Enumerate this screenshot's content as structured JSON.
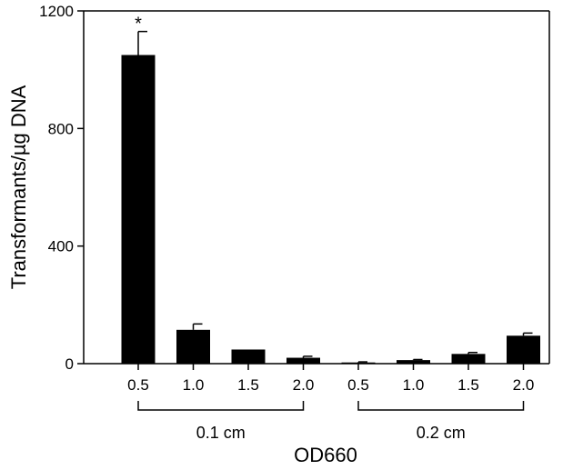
{
  "chart_data": {
    "type": "bar",
    "categories": [
      "0.5",
      "1.0",
      "1.5",
      "2.0",
      "0.5",
      "1.0",
      "1.5",
      "2.0"
    ],
    "values": [
      1050,
      115,
      48,
      20,
      4,
      12,
      33,
      95
    ],
    "errors": [
      80,
      20,
      0,
      5,
      2,
      2,
      5,
      9
    ],
    "groups": [
      {
        "label": "0.1 cm",
        "indices": [
          0,
          1,
          2,
          3
        ]
      },
      {
        "label": "0.2 cm",
        "indices": [
          4,
          5,
          6,
          7
        ]
      }
    ],
    "annotations": [
      {
        "index": 0,
        "text": "*"
      }
    ],
    "xlabel": "OD660",
    "ylabel": "Transformants/µg DNA",
    "ylim": [
      0,
      1200
    ],
    "yticks": [
      0,
      400,
      800,
      1200
    ],
    "grid": false,
    "colors": {
      "bars": "#000000"
    }
  }
}
